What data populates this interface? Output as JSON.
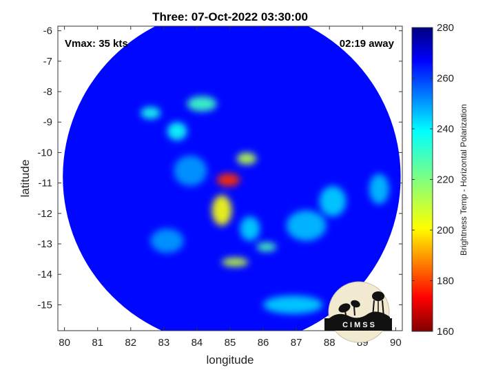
{
  "chart_data": {
    "type": "heatmap",
    "title": "Three: 07-Oct-2022 03:30:00",
    "xlabel": "longitude",
    "ylabel": "latitude",
    "xlim": [
      79.8,
      90.2
    ],
    "ylim": [
      -15.85,
      -5.85
    ],
    "x_ticks": [
      80,
      81,
      82,
      83,
      84,
      85,
      86,
      87,
      88,
      89,
      90
    ],
    "y_ticks": [
      -6,
      -7,
      -8,
      -9,
      -10,
      -11,
      -12,
      -13,
      -14,
      -15
    ],
    "annotations": {
      "vmax": "Vmax: 35 kts",
      "away": "02:19 away"
    },
    "colorbar": {
      "label": "Brightness Temp - Horizontal Polarization",
      "range": [
        160,
        280
      ],
      "ticks": [
        160,
        180,
        200,
        220,
        240,
        260,
        280
      ],
      "colormap": "jet"
    },
    "swath": {
      "center": [
        85.05,
        -10.8
      ],
      "radius_deg": 5.1
    },
    "background_value": 266,
    "features": [
      {
        "lon": 84.95,
        "lat": -10.9,
        "value": 178,
        "rx": 0.35,
        "ry": 0.22
      },
      {
        "lon": 85.5,
        "lat": -10.2,
        "value": 212,
        "rx": 0.3,
        "ry": 0.2
      },
      {
        "lon": 84.75,
        "lat": -11.9,
        "value": 202,
        "rx": 0.3,
        "ry": 0.5
      },
      {
        "lon": 85.15,
        "lat": -13.6,
        "value": 210,
        "rx": 0.4,
        "ry": 0.15
      },
      {
        "lon": 86.1,
        "lat": -13.1,
        "value": 228,
        "rx": 0.3,
        "ry": 0.15
      },
      {
        "lon": 84.15,
        "lat": -8.4,
        "value": 230,
        "rx": 0.45,
        "ry": 0.25
      },
      {
        "lon": 82.6,
        "lat": -8.7,
        "value": 236,
        "rx": 0.3,
        "ry": 0.2
      },
      {
        "lon": 83.4,
        "lat": -9.3,
        "value": 238,
        "rx": 0.3,
        "ry": 0.3
      },
      {
        "lon": 85.6,
        "lat": -12.5,
        "value": 244,
        "rx": 0.3,
        "ry": 0.4
      },
      {
        "lon": 88.1,
        "lat": -11.6,
        "value": 244,
        "rx": 0.4,
        "ry": 0.5
      },
      {
        "lon": 87.3,
        "lat": -12.4,
        "value": 246,
        "rx": 0.6,
        "ry": 0.5
      },
      {
        "lon": 89.5,
        "lat": -11.2,
        "value": 246,
        "rx": 0.3,
        "ry": 0.5
      },
      {
        "lon": 83.1,
        "lat": -12.9,
        "value": 250,
        "rx": 0.5,
        "ry": 0.4
      },
      {
        "lon": 83.8,
        "lat": -10.6,
        "value": 250,
        "rx": 0.5,
        "ry": 0.5
      },
      {
        "lon": 86.9,
        "lat": -15.0,
        "value": 244,
        "rx": 0.9,
        "ry": 0.3
      }
    ]
  },
  "logo": {
    "text": "CIMSS"
  }
}
